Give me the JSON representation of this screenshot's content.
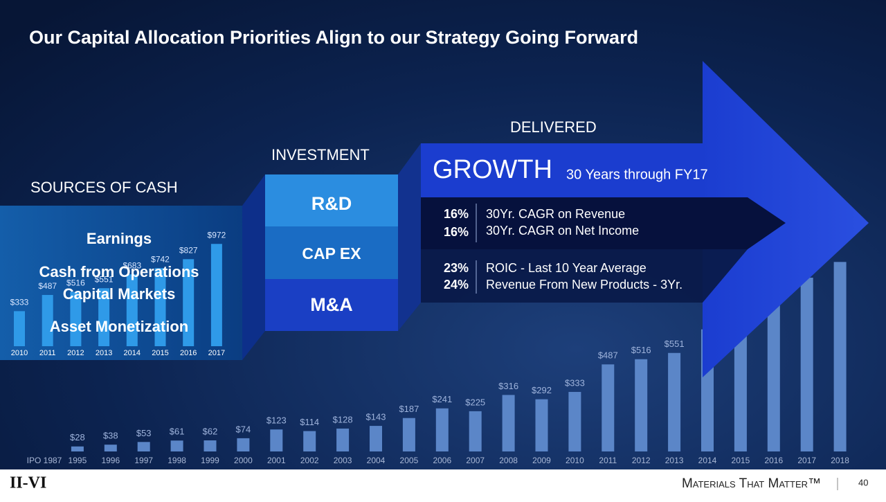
{
  "title": "Our Capital Allocation Priorities Align to our Strategy Going Forward",
  "sources": {
    "heading": "SOURCES OF CASH",
    "items": [
      "Earnings",
      "Cash from Operations",
      "Capital Markets",
      "Asset Monetization"
    ]
  },
  "investment": {
    "heading": "INVESTMENT",
    "items": [
      "R&D",
      "CAP EX",
      "M&A"
    ]
  },
  "delivered": {
    "heading": "DELIVERED",
    "growth": "GROWTH",
    "growth_note": "30 Years through FY17",
    "metrics": [
      {
        "value": "16%",
        "label": "30Yr. CAGR on Revenue"
      },
      {
        "value": "16%",
        "label": "30Yr. CAGR on Net Income"
      },
      {
        "value": "23%",
        "label": "ROIC - Last 10 Year Average"
      },
      {
        "value": "24%",
        "label": "Revenue From New Products - 3Yr."
      }
    ]
  },
  "footer": {
    "logo": "II-VI",
    "tagline": "Materials That Matter™",
    "page": "40"
  },
  "chart_data": [
    {
      "type": "bar",
      "color": "#5b86c8",
      "categories": [
        "IPO 1987",
        "1995",
        "1996",
        "1997",
        "1998",
        "1999",
        "2000",
        "2001",
        "2002",
        "2003",
        "2004",
        "2005",
        "2006",
        "2007",
        "2008",
        "2009",
        "2010",
        "2011",
        "2012",
        "2013",
        "2014",
        "2015",
        "2016",
        "2017",
        "2018"
      ],
      "values": [
        null,
        28,
        38,
        53,
        61,
        62,
        74,
        123,
        114,
        128,
        143,
        187,
        241,
        225,
        316,
        292,
        333,
        487,
        516,
        551,
        683,
        742,
        827,
        972,
        1060
      ],
      "value_labels": [
        null,
        "$28",
        "$38",
        "$53",
        "$61",
        "$62",
        "$74",
        "$123",
        "$114",
        "$128",
        "$143",
        "$187",
        "$241",
        "$225",
        "$316",
        "$292",
        "$333",
        "$487",
        "$516",
        "$551",
        null,
        null,
        null,
        null,
        null
      ],
      "ylim": [
        0,
        1100
      ]
    },
    {
      "type": "bar",
      "color": "#2f9ae8",
      "categories": [
        "2010",
        "2011",
        "2012",
        "2013",
        "2014",
        "2015",
        "2016",
        "2017"
      ],
      "values": [
        333,
        487,
        516,
        551,
        683,
        742,
        827,
        972
      ],
      "value_labels": [
        "$333",
        "$487",
        "$516",
        "$551",
        "$683",
        "$742",
        "$827",
        "$972"
      ],
      "ylim": [
        0,
        1000
      ]
    }
  ]
}
